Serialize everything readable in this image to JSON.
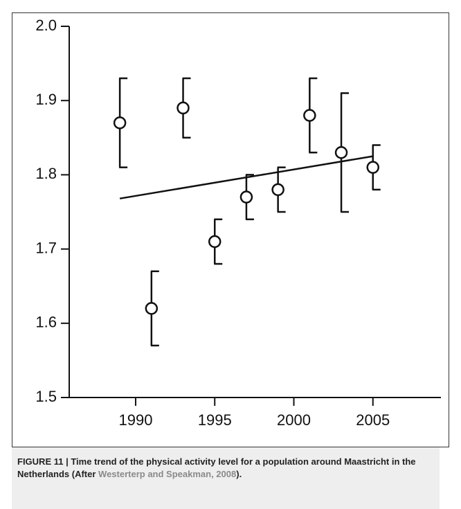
{
  "chart_data": {
    "type": "errorbar",
    "x": [
      1989,
      1991,
      1993,
      1995,
      1997,
      1999,
      2001,
      2003,
      2005
    ],
    "values": [
      1.87,
      1.62,
      1.89,
      1.71,
      1.77,
      1.78,
      1.88,
      1.83,
      1.81
    ],
    "errors": [
      0.06,
      0.05,
      0.04,
      0.03,
      0.03,
      0.03,
      0.05,
      0.08,
      0.03
    ],
    "trend": {
      "x": [
        1989,
        2005
      ],
      "values": [
        1.768,
        1.825
      ]
    },
    "color": "#111111",
    "xlim": [
      1985.8,
      2009.3
    ],
    "xticks": [
      1990,
      1995,
      2000,
      2005
    ],
    "ylim": [
      1.5,
      2.0
    ],
    "yticks": [
      1.5,
      1.6,
      1.7,
      1.8,
      1.9,
      {
        "value": 2,
        "label": "2.0"
      }
    ]
  },
  "caption": {
    "text": "FIGURE 11 | Time trend of the physical activity level for a population around Maastricht in the Netherlands (After",
    "reference": "Westerterp and Speakman, 2008",
    "end": ")."
  }
}
